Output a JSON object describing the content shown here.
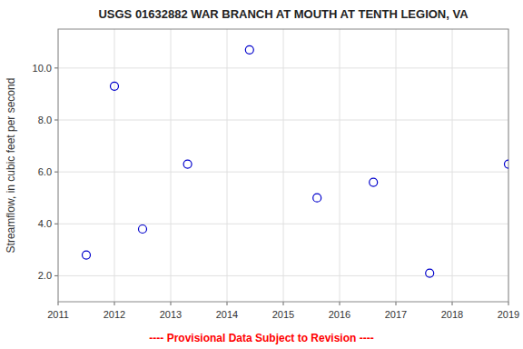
{
  "chart_data": {
    "type": "scatter",
    "title": "USGS 01632882 WAR BRANCH AT MOUTH AT TENTH LEGION, VA",
    "ylabel": "Streamflow, in cubic feet per second",
    "x": [
      2011.5,
      2012.0,
      2012.5,
      2013.3,
      2014.4,
      2015.6,
      2016.6,
      2017.6,
      2019.0
    ],
    "values": [
      2.8,
      9.3,
      3.8,
      6.3,
      10.7,
      5.0,
      5.6,
      2.1,
      6.3
    ],
    "color": "#0000CC",
    "marker": "open-circle",
    "xlim": [
      2011,
      2019
    ],
    "ylim": [
      1.0,
      11.5
    ],
    "xticks": [
      2011,
      2012,
      2013,
      2014,
      2015,
      2016,
      2017,
      2018,
      2019
    ],
    "yticks": [
      {
        "value": 2.0,
        "label": "2.0"
      },
      {
        "value": 4.0,
        "label": "4.0"
      },
      {
        "value": 6.0,
        "label": "6.0"
      },
      {
        "value": 8.0,
        "label": "8.0"
      },
      {
        "value": 10.0,
        "label": "10.0"
      }
    ],
    "grid": true,
    "annotations": [
      {
        "text": "---- Provisional Data Subject to Revision ----",
        "color": "#ff0000"
      }
    ]
  }
}
